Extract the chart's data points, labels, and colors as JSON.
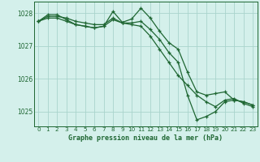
{
  "title": "Graphe pression niveau de la mer (hPa)",
  "bg_color": "#d4f0eb",
  "grid_color": "#aad4cc",
  "line_color": "#1e6632",
  "ylim": [
    1024.55,
    1028.35
  ],
  "yticks": [
    1025,
    1026,
    1027,
    1028
  ],
  "xlim": [
    -0.5,
    23.5
  ],
  "xticks": [
    0,
    1,
    2,
    3,
    4,
    5,
    6,
    7,
    8,
    9,
    10,
    11,
    12,
    13,
    14,
    15,
    16,
    17,
    18,
    19,
    20,
    21,
    22,
    23
  ],
  "series": [
    [
      1027.75,
      1027.9,
      1027.9,
      1027.85,
      1027.75,
      1027.7,
      1027.65,
      1027.65,
      1027.85,
      1027.7,
      1027.7,
      1027.75,
      1027.5,
      1027.2,
      1026.8,
      1026.5,
      1025.5,
      1024.75,
      1024.85,
      1025.0,
      1025.3,
      1025.35,
      1025.3,
      1025.2
    ],
    [
      1027.75,
      1027.95,
      1027.95,
      1027.8,
      1027.65,
      1027.6,
      1027.55,
      1027.6,
      1028.05,
      1027.72,
      1027.82,
      1028.15,
      1027.85,
      1027.45,
      1027.1,
      1026.9,
      1026.2,
      1025.6,
      1025.5,
      1025.55,
      1025.6,
      1025.35,
      1025.3,
      1025.2
    ],
    [
      1027.75,
      1027.85,
      1027.85,
      1027.75,
      1027.65,
      1027.6,
      1027.55,
      1027.6,
      1027.8,
      1027.7,
      1027.65,
      1027.6,
      1027.3,
      1026.9,
      1026.5,
      1026.1,
      1025.8,
      1025.5,
      1025.3,
      1025.15,
      1025.35,
      1025.4,
      1025.25,
      1025.15
    ]
  ]
}
